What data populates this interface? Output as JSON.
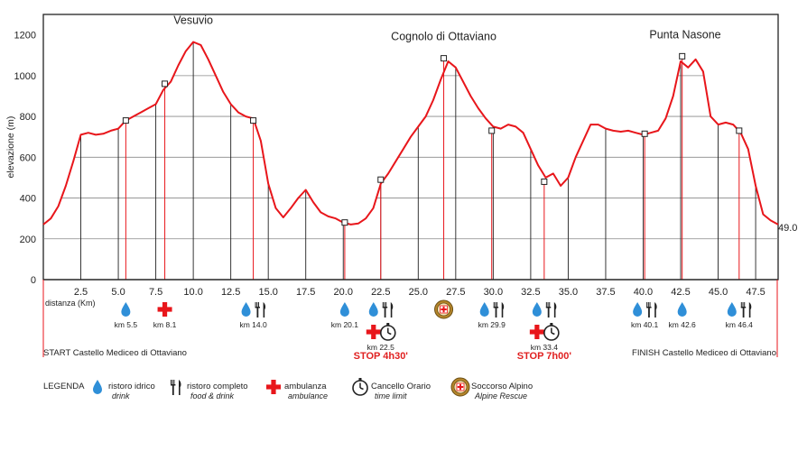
{
  "chart_data": {
    "type": "area",
    "ylabel": "elevazione (m)",
    "xlabel": "distanza (Km)",
    "xlim": [
      0,
      49.0
    ],
    "ylim": [
      0,
      1300
    ],
    "yticks": [
      0,
      200,
      400,
      600,
      800,
      1000,
      1200
    ],
    "xticks": [
      2.5,
      5.0,
      7.5,
      10.0,
      12.5,
      15.0,
      17.5,
      20.0,
      22.5,
      25.0,
      27.5,
      30.0,
      32.5,
      35.0,
      37.5,
      40.0,
      42.5,
      45.0,
      47.5
    ],
    "xtick_labels": [
      "2.5",
      "5.0",
      "7.5",
      "10.0",
      "12.5",
      "15.0",
      "17.5",
      "20.0",
      "22.5",
      "25.0",
      "27.5",
      "30.0",
      "32.5",
      "35.0",
      "37.5",
      "40.0",
      "42.5",
      "45.0",
      "47.5"
    ],
    "end_label": "49.0",
    "series": [
      {
        "x": [
          0,
          0.5,
          1,
          1.5,
          2,
          2.5,
          3,
          3.5,
          4,
          4.5,
          5,
          5.5,
          6,
          6.5,
          7,
          7.5,
          8,
          8.5,
          9,
          9.5,
          10,
          10.5,
          11,
          11.5,
          12,
          12.5,
          13,
          13.5,
          14,
          14.5,
          15,
          15.5,
          16,
          16.5,
          17,
          17.5,
          18,
          18.5,
          19,
          19.5,
          20,
          20.5,
          21,
          21.5,
          22,
          22.5,
          23,
          23.5,
          24,
          24.5,
          25,
          25.5,
          26,
          26.5,
          27,
          27.5,
          28,
          28.5,
          29,
          29.5,
          30,
          30.5,
          31,
          31.5,
          32,
          32.5,
          33,
          33.5,
          34,
          34.5,
          35,
          35.5,
          36,
          36.5,
          37,
          37.5,
          38,
          38.5,
          39,
          39.5,
          40,
          40.5,
          41,
          41.5,
          42,
          42.5,
          43,
          43.5,
          44,
          44.5,
          45,
          45.5,
          46,
          46.5,
          47,
          47.5,
          48,
          48.5,
          49
        ],
        "y": [
          270,
          300,
          360,
          460,
          580,
          710,
          720,
          710,
          715,
          730,
          740,
          780,
          800,
          820,
          840,
          860,
          930,
          970,
          1050,
          1120,
          1165,
          1150,
          1080,
          1000,
          920,
          860,
          820,
          800,
          790,
          680,
          470,
          350,
          305,
          350,
          400,
          440,
          380,
          330,
          310,
          300,
          280,
          270,
          275,
          300,
          350,
          470,
          520,
          580,
          640,
          700,
          750,
          800,
          880,
          980,
          1070,
          1040,
          970,
          900,
          840,
          790,
          750,
          740,
          760,
          750,
          720,
          640,
          560,
          500,
          520,
          460,
          500,
          600,
          680,
          760,
          760,
          740,
          730,
          725,
          730,
          720,
          710,
          720,
          730,
          790,
          900,
          1070,
          1040,
          1080,
          1020,
          800,
          760,
          770,
          760,
          720,
          640,
          460,
          320,
          290,
          270
        ]
      }
    ],
    "peaks": [
      {
        "label": "Vesuvio",
        "x": 10.0,
        "y": 1165
      },
      {
        "label": "Cognolo di Ottaviano",
        "x": 26.7,
        "y": 1085
      },
      {
        "label": "Punta Nasone",
        "x": 42.8,
        "y": 1095
      }
    ],
    "black_verticals": [
      2.5,
      5.0,
      7.5,
      10.0,
      12.5,
      15.0,
      17.5,
      20.0,
      22.5,
      25.0,
      27.5,
      30.0,
      32.5,
      35.0,
      37.5,
      40.0,
      42.5,
      45.0,
      47.5
    ],
    "checkpoints": [
      {
        "x": 5.5,
        "y": 780
      },
      {
        "x": 8.1,
        "y": 960
      },
      {
        "x": 14.0,
        "y": 780
      },
      {
        "x": 20.1,
        "y": 280
      },
      {
        "x": 22.5,
        "y": 490
      },
      {
        "x": 26.7,
        "y": 1085
      },
      {
        "x": 29.9,
        "y": 730
      },
      {
        "x": 33.4,
        "y": 480
      },
      {
        "x": 40.1,
        "y": 715
      },
      {
        "x": 42.6,
        "y": 1095
      },
      {
        "x": 46.4,
        "y": 730
      }
    ]
  },
  "markers": [
    {
      "x": 5.5,
      "icons": [
        "drop"
      ],
      "label": "km 5.5",
      "row": 1
    },
    {
      "x": 8.1,
      "icons": [
        "cross"
      ],
      "label": "km 8.1",
      "row": 1
    },
    {
      "x": 14.0,
      "icons": [
        "drop",
        "fork"
      ],
      "label": "km 14.0",
      "row": 1
    },
    {
      "x": 20.1,
      "icons": [
        "drop"
      ],
      "label": "km 20.1",
      "row": 1
    },
    {
      "x": 22.5,
      "icons": [
        "drop",
        "fork"
      ],
      "row": 1
    },
    {
      "x": 22.5,
      "icons": [
        "cross",
        "clock"
      ],
      "label": "km 22.5",
      "row": 2
    },
    {
      "x": 26.7,
      "icons": [
        "rescue"
      ],
      "row": 1
    },
    {
      "x": 29.9,
      "icons": [
        "drop",
        "fork"
      ],
      "label": "km 29.9",
      "row": 1
    },
    {
      "x": 33.4,
      "icons": [
        "drop",
        "fork"
      ],
      "row": 1
    },
    {
      "x": 33.4,
      "icons": [
        "cross",
        "clock"
      ],
      "label": "km 33.4",
      "row": 2
    },
    {
      "x": 40.1,
      "icons": [
        "drop",
        "fork"
      ],
      "label": "km 40.1",
      "row": 1
    },
    {
      "x": 42.6,
      "icons": [
        "drop"
      ],
      "label": "km 42.6",
      "row": 1
    },
    {
      "x": 46.4,
      "icons": [
        "drop",
        "fork"
      ],
      "label": "km 46.4",
      "row": 1
    }
  ],
  "stops": [
    {
      "x": 22.5,
      "label": "STOP 4h30'"
    },
    {
      "x": 33.4,
      "label": "STOP 7h00'"
    }
  ],
  "start_label": "START Castello Mediceo di Ottaviano",
  "finish_label": "FINISH Castello Mediceo di Ottaviano",
  "legend": {
    "title": "LEGENDA",
    "items": [
      {
        "icon": "drop",
        "it": "ristoro idrico",
        "en": "drink"
      },
      {
        "icon": "fork",
        "it": "ristoro completo",
        "en": "food & drink"
      },
      {
        "icon": "cross",
        "it": "ambulanza",
        "en": "ambulance"
      },
      {
        "icon": "clock",
        "it": "Cancello Orario",
        "en": "time limit"
      },
      {
        "icon": "rescue",
        "it": "Soccorso Alpino",
        "en": "Alpine Rescue"
      }
    ]
  },
  "colors": {
    "profile": "#e8161b",
    "redline": "#e8161b",
    "drop": "#2f8fd8",
    "cross": "#e8161b",
    "axis": "#222222",
    "grid": "#333333"
  }
}
